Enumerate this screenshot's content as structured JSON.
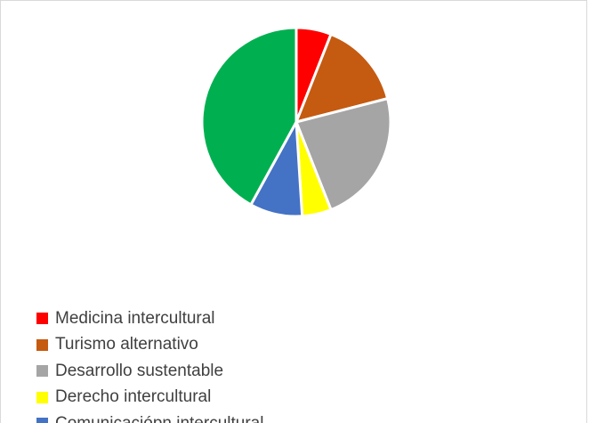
{
  "chart_data": {
    "type": "pie",
    "title": "",
    "series": [
      {
        "values": [
          6,
          15,
          23,
          5,
          9,
          42
        ]
      }
    ],
    "categories": [
      "Medicina intercultural",
      "Turismo alternativo",
      "Desarrollo sustentable",
      "Derecho intercultural",
      "Comunicación intercultural",
      ""
    ],
    "colors": [
      "#ff0000",
      "#c55a11",
      "#a5a5a5",
      "#ffff00",
      "#4472c4",
      "#00b050"
    ],
    "legend": "bottom-left",
    "legend_items": [
      {
        "label": "Medicina intercultural",
        "color": "#ff0000"
      },
      {
        "label": "Turismo alternativo",
        "color": "#c55a11"
      },
      {
        "label": "Desarrollo sustentable",
        "color": "#a5a5a5"
      },
      {
        "label": "Derecho intercultural",
        "color": "#ffff00"
      },
      {
        "label": "Comunicaciópn intercultural",
        "color": "#4472c4"
      }
    ]
  }
}
